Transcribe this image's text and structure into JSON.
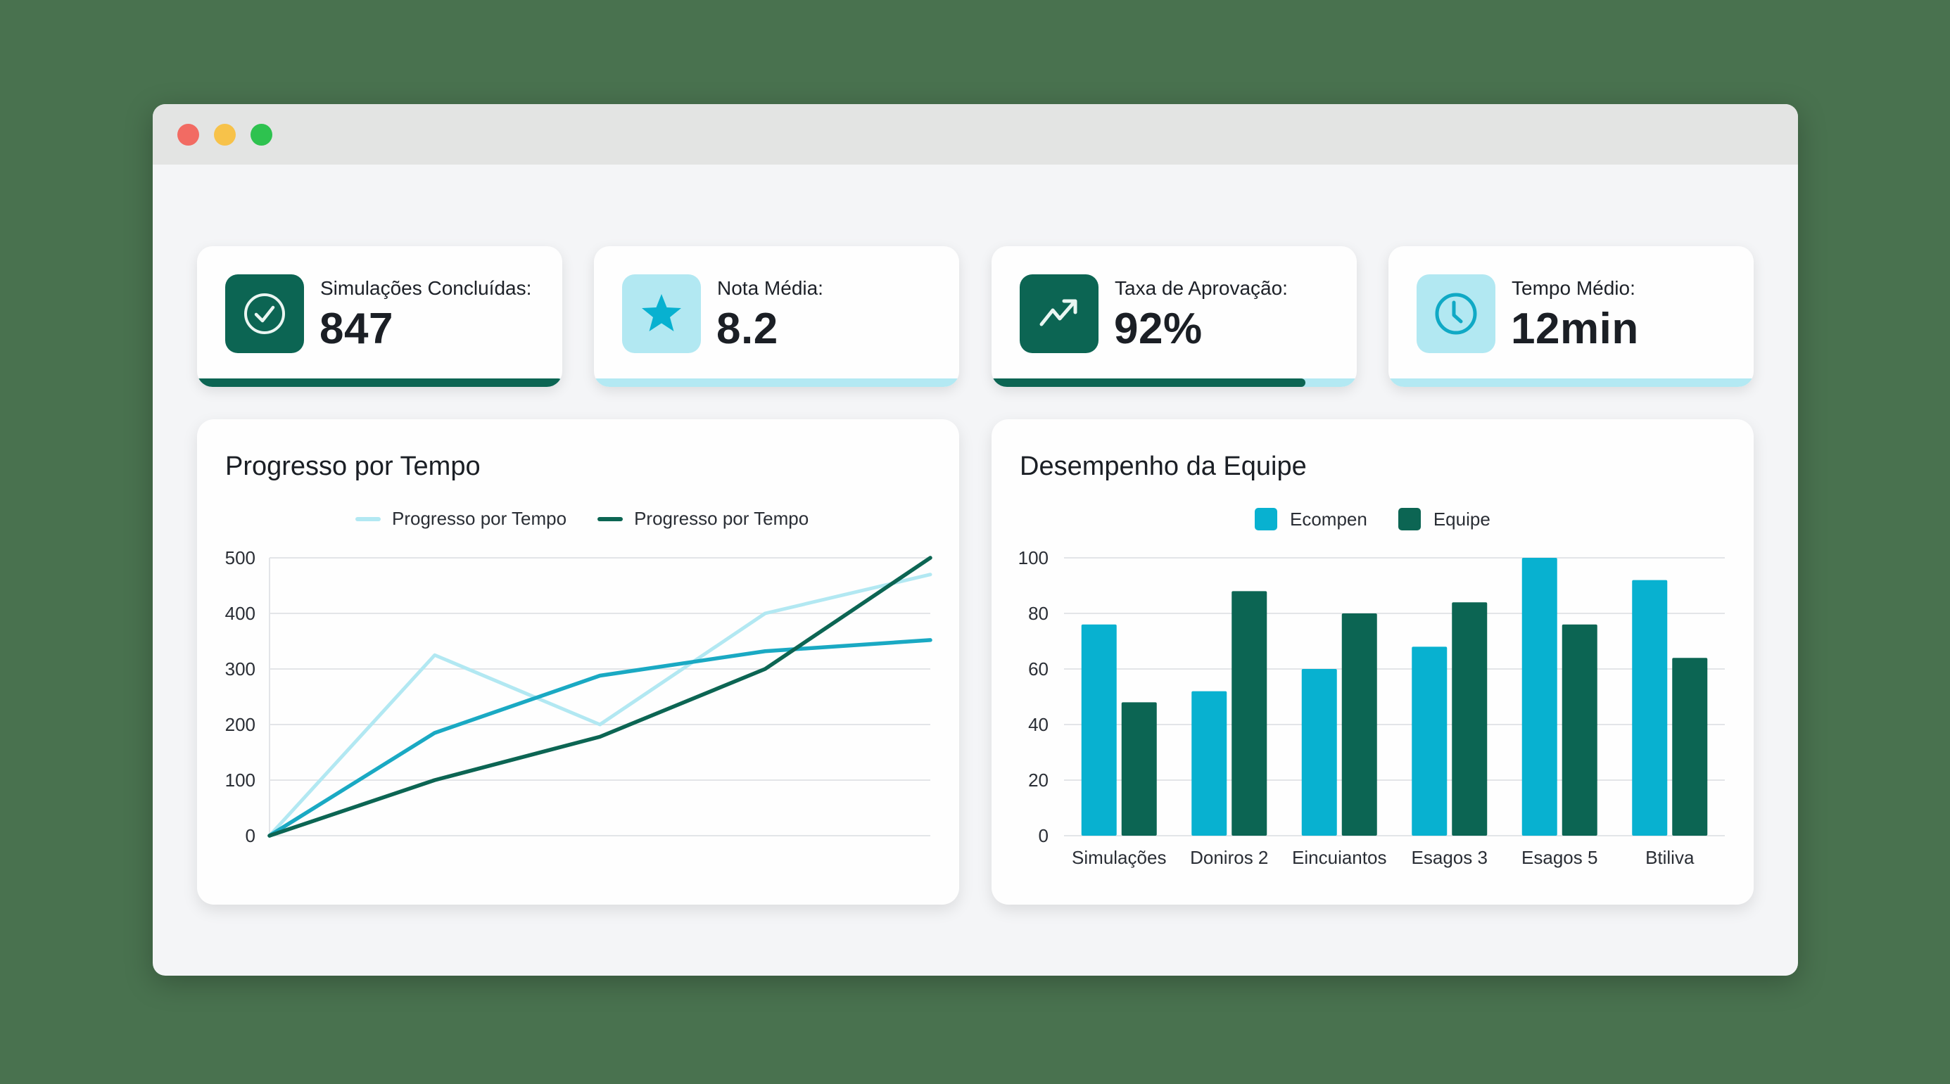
{
  "window": {
    "traffic_lights": [
      "close",
      "minimize",
      "maximize"
    ]
  },
  "stats": [
    {
      "label": "Simulações Concluídas:",
      "value": "847",
      "icon": "check-circle-icon",
      "icon_style": "dark",
      "progress": 100
    },
    {
      "label": "Nota Média:",
      "value": "8.2",
      "icon": "star-icon",
      "icon_style": "light",
      "progress": 0
    },
    {
      "label": "Taxa de Aprovação:",
      "value": "92%",
      "icon": "trending-up-icon",
      "icon_style": "dark",
      "progress": 86
    },
    {
      "label": "Tempo Médio:",
      "value": "12min",
      "icon": "clock-icon",
      "icon_style": "light",
      "progress": 0
    }
  ],
  "colors": {
    "dark_green": "#0c6553",
    "cyan": "#08b1d0",
    "light_cyan": "#b2e8f2",
    "mid_teal": "#1aa9c3"
  },
  "chart_data": [
    {
      "type": "line",
      "title": "Progresso por Tempo",
      "xlabel": "",
      "ylabel": "",
      "x": [
        0,
        1,
        2,
        3,
        4
      ],
      "ylim": [
        0,
        500
      ],
      "yticks": [
        0,
        100,
        200,
        300,
        400,
        500
      ],
      "grid": true,
      "legend_position": "top",
      "series": [
        {
          "name": "Progresso por Tempo",
          "color": "#b2e8f2",
          "values": [
            0,
            325,
            200,
            400,
            470
          ],
          "in_legend": true
        },
        {
          "name": "",
          "color": "#1aa9c3",
          "values": [
            0,
            185,
            288,
            332,
            352
          ],
          "in_legend": false
        },
        {
          "name": "Progresso por Tempo",
          "color": "#0c6553",
          "values": [
            0,
            100,
            178,
            300,
            500
          ],
          "in_legend": true
        }
      ]
    },
    {
      "type": "bar",
      "title": "Desempenho da Equipe",
      "xlabel": "",
      "ylabel": "",
      "categories": [
        "Simulações",
        "Doniros 2",
        "Eincuiantos",
        "Esagos 3",
        "Esagos 5",
        "Btiliva"
      ],
      "ylim": [
        0,
        100
      ],
      "yticks": [
        0,
        20,
        40,
        60,
        80,
        100
      ],
      "grid": true,
      "legend_position": "top",
      "series": [
        {
          "name": "Ecompen",
          "color": "#08b1d0",
          "values": [
            76,
            52,
            60,
            68,
            100,
            92
          ]
        },
        {
          "name": "Equipe",
          "color": "#0c6553",
          "values": [
            48,
            88,
            80,
            84,
            76,
            64
          ]
        }
      ]
    }
  ]
}
